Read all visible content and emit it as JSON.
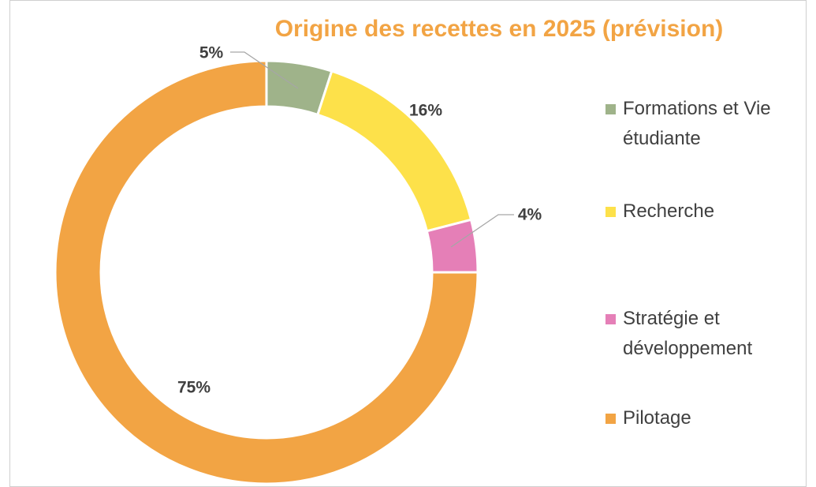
{
  "chart_data": {
    "type": "donut",
    "title": "Origine des recettes en 2025 (prévision)",
    "categories": [
      "Formations et Vie étudiante",
      "Recherche",
      "Stratégie et développement",
      "Pilotage"
    ],
    "values": [
      5,
      16,
      4,
      75
    ],
    "value_labels": [
      "5%",
      "16%",
      "4%",
      "75%"
    ],
    "colors": [
      "#9fb38a",
      "#fde14a",
      "#e57fb7",
      "#f2a444"
    ],
    "legend": "right"
  }
}
